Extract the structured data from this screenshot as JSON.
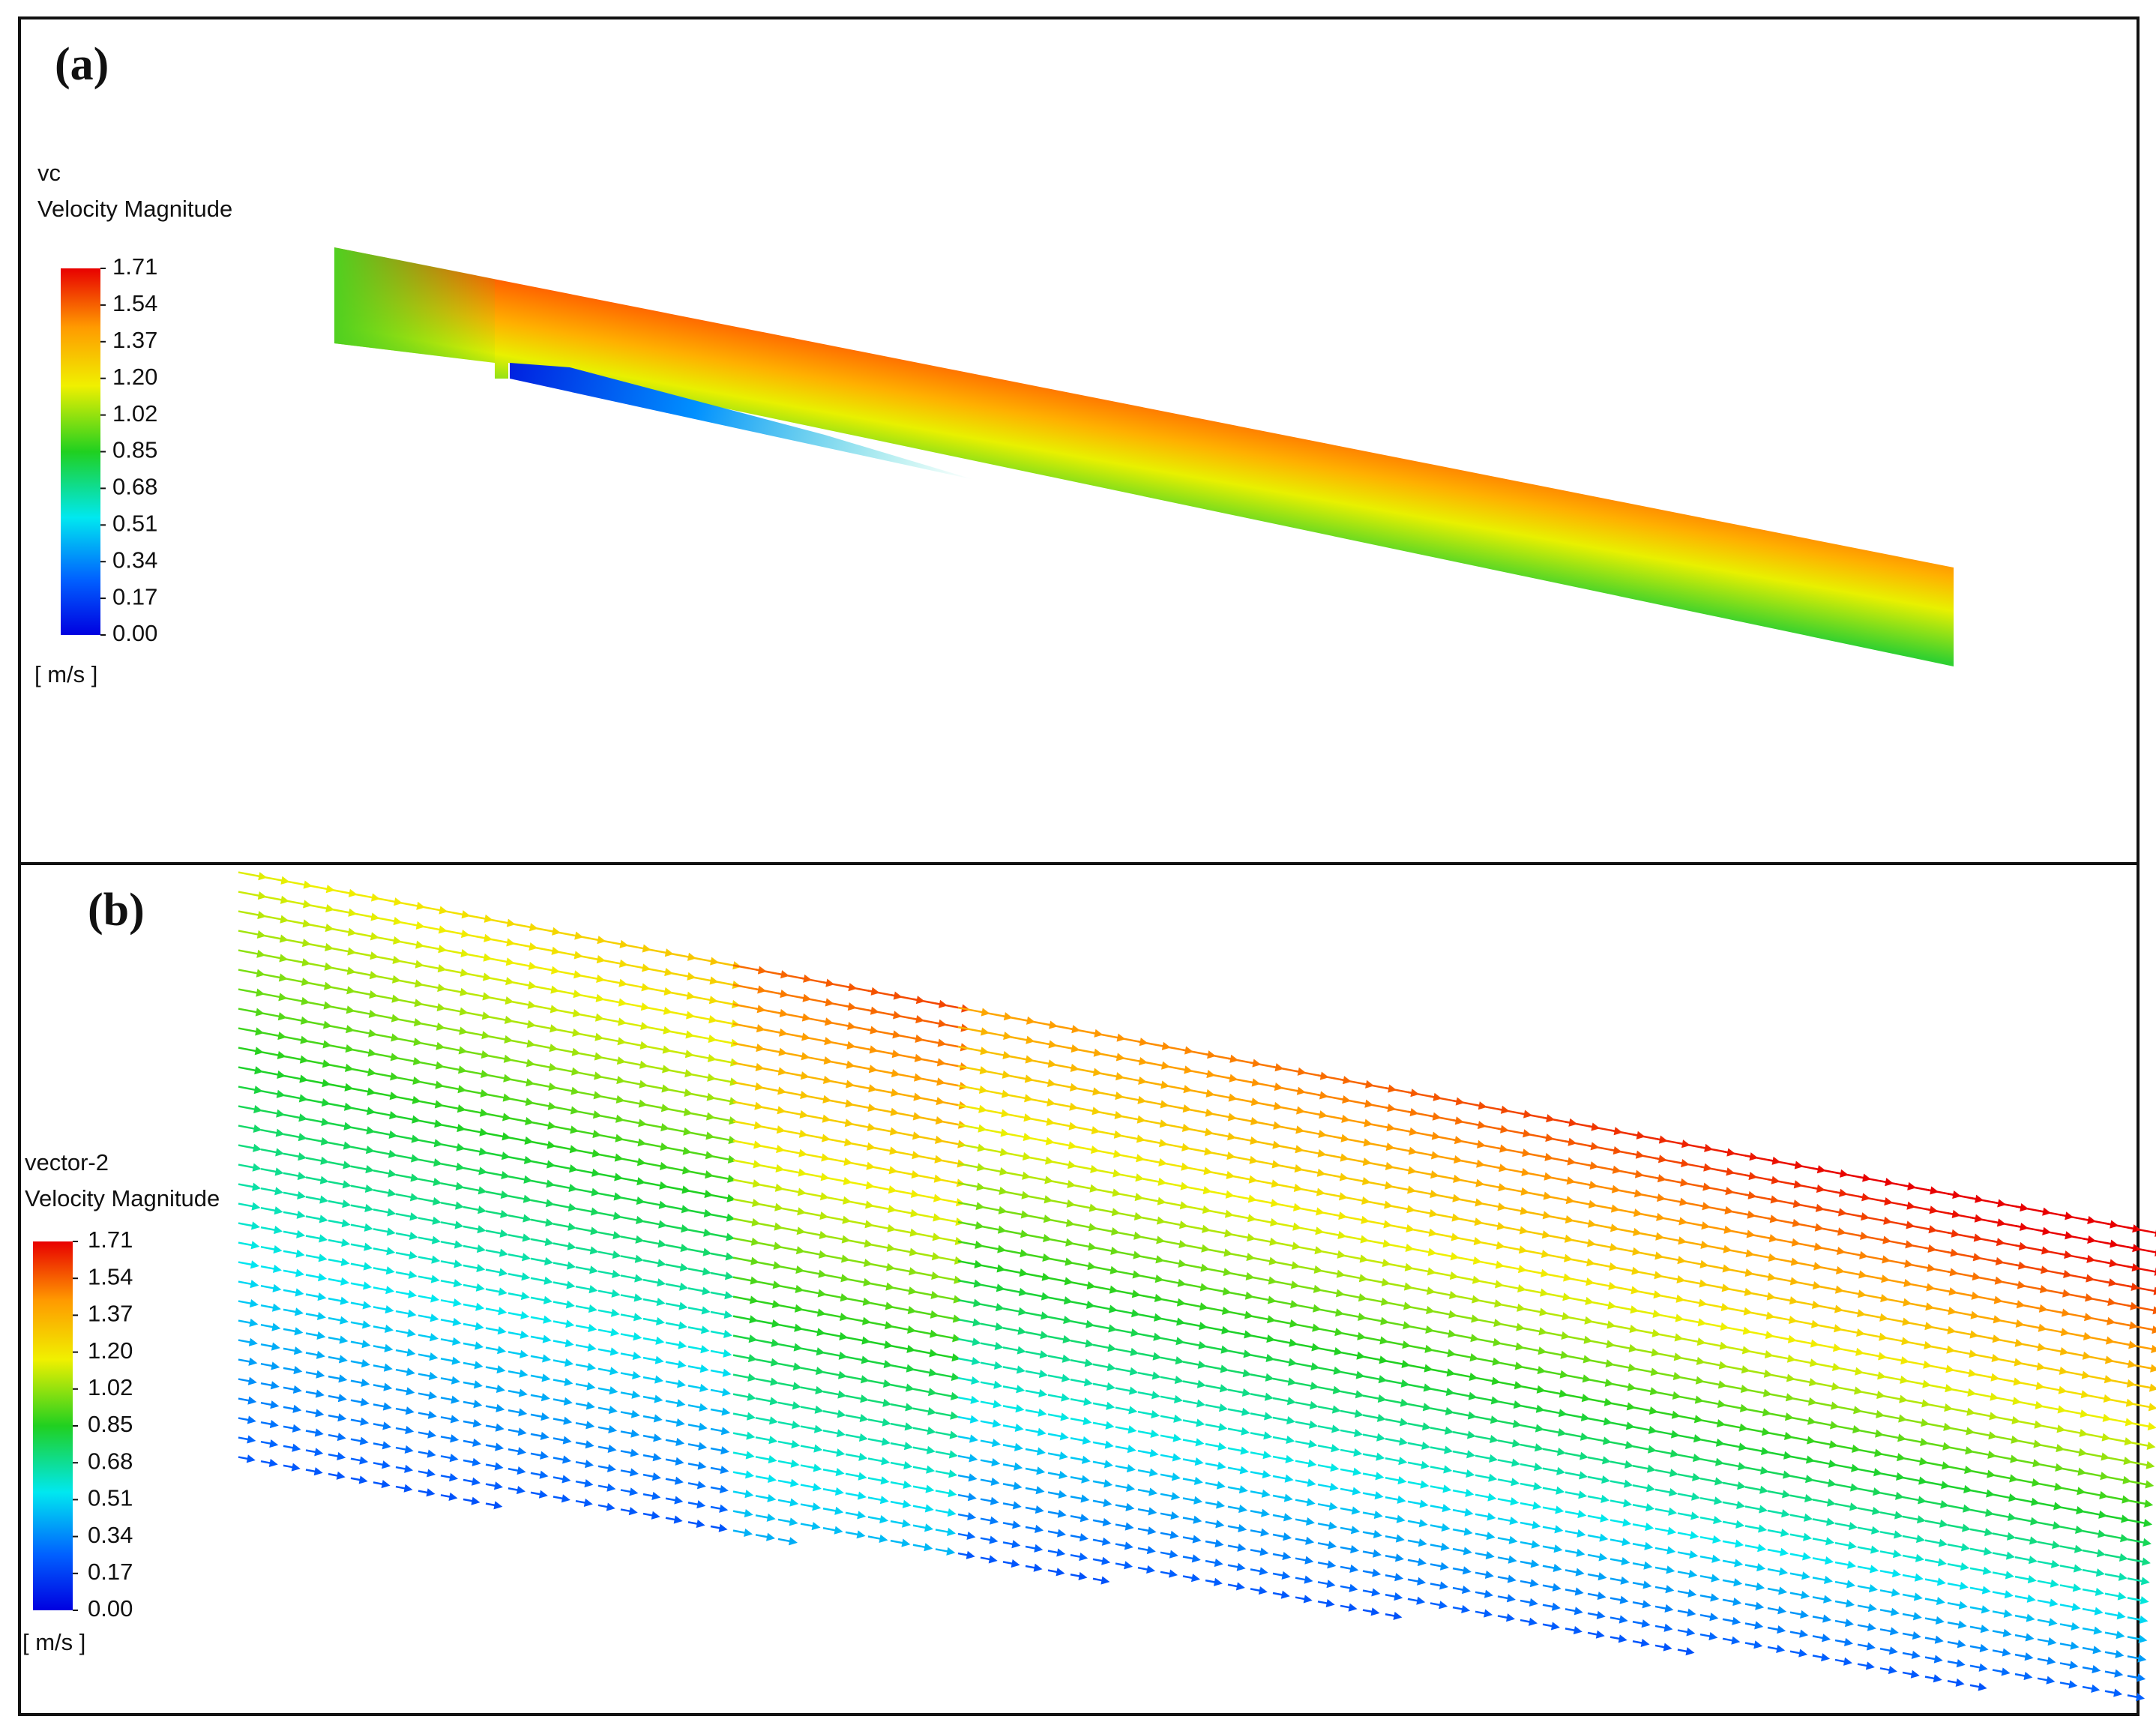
{
  "panels": [
    {
      "label": "(a)",
      "legend": {
        "title": "vc",
        "quantity": "Velocity Magnitude",
        "ticks": [
          "1.71",
          "1.54",
          "1.37",
          "1.20",
          "1.02",
          "0.85",
          "0.68",
          "0.51",
          "0.34",
          "0.17",
          "0.00"
        ],
        "unit": "[ m/s ]"
      }
    },
    {
      "label": "(b)",
      "legend": {
        "title": "vector-2",
        "quantity": "Velocity Magnitude",
        "ticks": [
          "1.71",
          "1.54",
          "1.37",
          "1.20",
          "1.02",
          "0.85",
          "0.68",
          "0.51",
          "0.34",
          "0.17",
          "0.00"
        ],
        "unit": "[ m/s ]"
      }
    }
  ]
}
